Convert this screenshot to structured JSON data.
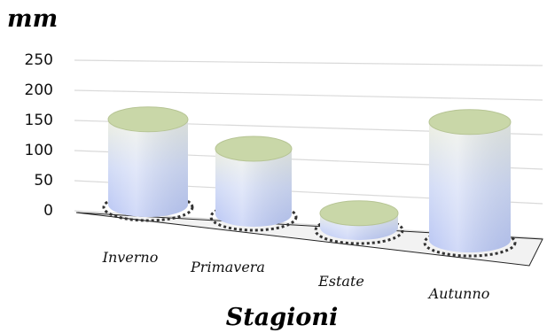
{
  "chart_data": {
    "type": "bar",
    "style": "3d-cylinder",
    "categories": [
      "Inverno",
      "Primavera",
      "Estate",
      "Autunno"
    ],
    "values": [
      130,
      100,
      22,
      180
    ],
    "ylabel": "mm",
    "xlabel": "Stagioni",
    "ylim": [
      0,
      250
    ],
    "yticks": [
      "0",
      "50",
      "100",
      "150",
      "200",
      "250"
    ],
    "grid": true,
    "colors": {
      "body_top": "#eef0e2",
      "body_mid": "#d3dcf6",
      "body_bottom": "#b9c6f4",
      "cap": "#c9d7a8",
      "gridline": "#d9d9d9"
    }
  }
}
